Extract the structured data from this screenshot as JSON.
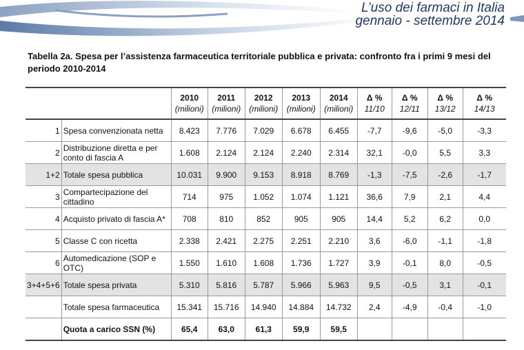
{
  "header": {
    "line1": "L’uso dei farmaci in Italia",
    "line2": "gennaio - settembre 2014"
  },
  "title": "Tabella 2a.  Spesa per l’assistenza farmaceutica territoriale pubblica e privata: confronto fra i primi 9 mesi del periodo 2010-2014",
  "columns": [
    {
      "top": "2010",
      "sub": "(milioni)"
    },
    {
      "top": "2011",
      "sub": "(milioni)"
    },
    {
      "top": "2012",
      "sub": "(milioni)"
    },
    {
      "top": "2013",
      "sub": "(milioni)"
    },
    {
      "top": "2014",
      "sub": "(milioni)"
    },
    {
      "top": "Δ %",
      "sub": "11/10"
    },
    {
      "top": "Δ %",
      "sub": "12/11"
    },
    {
      "top": "Δ %",
      "sub": "13/12"
    },
    {
      "top": "Δ %",
      "sub": "14/13"
    }
  ],
  "rows": [
    {
      "num": "1",
      "label": "Spesa convenzionata netta",
      "values": [
        "8.423",
        "7.776",
        "7.029",
        "6.678",
        "6.455",
        "-7,7",
        "-9,6",
        "-5,0",
        "-3,3"
      ]
    },
    {
      "num": "2",
      "label": "Distribuzione diretta e per conto di fascia A",
      "values": [
        "1.608",
        "2.124",
        "2.124",
        "2.240",
        "2.314",
        "32,1",
        "-0,0",
        "5,5",
        "3,3"
      ]
    },
    {
      "num": "1+2",
      "label": "Totale spesa pubblica",
      "values": [
        "10.031",
        "9.900",
        "9.153",
        "8.918",
        "8.769",
        "-1,3",
        "-7,5",
        "-2,6",
        "-1,7"
      ],
      "gray": true
    },
    {
      "num": "3",
      "label": "Compartecipazione del cittadino",
      "values": [
        "714",
        "975",
        "1.052",
        "1.074",
        "1.121",
        "36,6",
        "7,9",
        "2,1",
        "4,4"
      ]
    },
    {
      "num": "4",
      "label": "Acquisto privato di fascia A*",
      "values": [
        "708",
        "810",
        "852",
        "905",
        "905",
        "14,4",
        "5,2",
        "6,2",
        "0,0"
      ]
    },
    {
      "num": "5",
      "label": "Classe C con ricetta",
      "values": [
        "2.338",
        "2.421",
        "2.275",
        "2.251",
        "2.210",
        "3,6",
        "-6,0",
        "-1,1",
        "-1,8"
      ]
    },
    {
      "num": "6",
      "label": "Automedicazione (SOP e OTC)",
      "values": [
        "1.550",
        "1.610",
        "1.608",
        "1.736",
        "1.727",
        "3,9",
        "-0,1",
        "8,0",
        "-0,5"
      ]
    },
    {
      "num": "3+4+5+6",
      "label": "Totale spesa privata",
      "values": [
        "5.310",
        "5.816",
        "5.787",
        "5.966",
        "5.963",
        "9,5",
        "-0,5",
        "3,1",
        "-0,1"
      ],
      "gray": true
    },
    {
      "num": "",
      "label": "Totale spesa farmaceutica",
      "values": [
        "15.341",
        "15.716",
        "14.940",
        "14.884",
        "14.732",
        "2,4",
        "-4,9",
        "-0,4",
        "-1,0"
      ]
    },
    {
      "num": "",
      "label": "Quota a carico SSN (%)",
      "values": [
        "65,4",
        "63,0",
        "61,3",
        "59,9",
        "59,5",
        "",
        "",
        "",
        ""
      ],
      "last": true
    }
  ]
}
